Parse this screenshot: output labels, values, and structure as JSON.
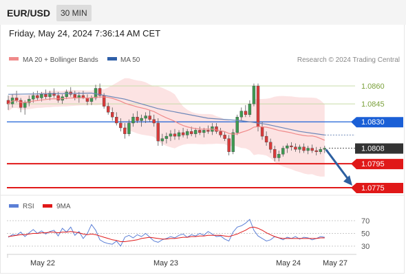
{
  "header": {
    "pair": "EUR/USD",
    "timeframe": "30 MIN",
    "timestamp": "Friday, May 24, 2024 7:36:14 AM CET"
  },
  "chart_data": [
    {
      "type": "candlestick",
      "legend": [
        {
          "name": "MA 20 + Bollinger Bands",
          "color": "#f08a8a"
        },
        {
          "name": "MA 50",
          "color": "#2f5fa8"
        }
      ],
      "credit": "Research © 2024 Trading Central",
      "x_labels": [
        "May 22",
        "May 23",
        "May 24",
        "May 27"
      ],
      "levels": [
        {
          "label": "1.0860",
          "value": 1.086,
          "kind": "resistance",
          "color": "#7aa03a"
        },
        {
          "label": "1.0845",
          "value": 1.0845,
          "kind": "resistance",
          "color": "#7aa03a"
        },
        {
          "label": "1.0830",
          "value": 1.083,
          "kind": "pivot",
          "color": "#1a5fd6"
        },
        {
          "label": "1.0808",
          "value": 1.0808,
          "kind": "last-price",
          "color": "#333333"
        },
        {
          "label": "1.0795",
          "value": 1.0795,
          "kind": "target",
          "color": "#e01818"
        },
        {
          "label": "1.0775",
          "value": 1.0775,
          "kind": "target",
          "color": "#e01818"
        }
      ],
      "ohlc": [
        [
          1.0848,
          1.0852,
          1.084,
          1.0845
        ],
        [
          1.0845,
          1.0853,
          1.0842,
          1.085
        ],
        [
          1.085,
          1.0856,
          1.0846,
          1.0848
        ],
        [
          1.0848,
          1.085,
          1.0838,
          1.0842
        ],
        [
          1.0842,
          1.0848,
          1.0836,
          1.0846
        ],
        [
          1.0846,
          1.0852,
          1.0843,
          1.0849
        ],
        [
          1.0849,
          1.0855,
          1.0846,
          1.0852
        ],
        [
          1.0852,
          1.0856,
          1.0848,
          1.085
        ],
        [
          1.085,
          1.0855,
          1.0847,
          1.0853
        ],
        [
          1.0853,
          1.0857,
          1.0849,
          1.0851
        ],
        [
          1.0851,
          1.0856,
          1.0848,
          1.0854
        ],
        [
          1.0854,
          1.0858,
          1.085,
          1.0852
        ],
        [
          1.0852,
          1.0855,
          1.0846,
          1.0848
        ],
        [
          1.0848,
          1.0853,
          1.0845,
          1.0851
        ],
        [
          1.0851,
          1.0857,
          1.0849,
          1.0855
        ],
        [
          1.0855,
          1.0859,
          1.0851,
          1.0853
        ],
        [
          1.0853,
          1.0856,
          1.0848,
          1.085
        ],
        [
          1.085,
          1.0855,
          1.0846,
          1.0852
        ],
        [
          1.0852,
          1.0856,
          1.0849,
          1.085
        ],
        [
          1.085,
          1.0853,
          1.0844,
          1.0847
        ],
        [
          1.0847,
          1.0852,
          1.0844,
          1.085
        ],
        [
          1.085,
          1.0861,
          1.0848,
          1.0858
        ],
        [
          1.0858,
          1.0862,
          1.085,
          1.0852
        ],
        [
          1.0852,
          1.0854,
          1.0841,
          1.0843
        ],
        [
          1.0843,
          1.0846,
          1.0836,
          1.0838
        ],
        [
          1.0838,
          1.0842,
          1.0831,
          1.0834
        ],
        [
          1.0834,
          1.0838,
          1.0827,
          1.0829
        ],
        [
          1.0829,
          1.0833,
          1.0822,
          1.0825
        ],
        [
          1.0825,
          1.0829,
          1.0816,
          1.082
        ],
        [
          1.082,
          1.0832,
          1.0818,
          1.0829
        ],
        [
          1.0829,
          1.0837,
          1.0826,
          1.0834
        ],
        [
          1.0834,
          1.0839,
          1.0829,
          1.0831
        ],
        [
          1.0831,
          1.0836,
          1.0826,
          1.0833
        ],
        [
          1.0833,
          1.0838,
          1.0829,
          1.0835
        ],
        [
          1.0835,
          1.084,
          1.083,
          1.0832
        ],
        [
          1.0832,
          1.0836,
          1.0826,
          1.0829
        ],
        [
          1.0829,
          1.0833,
          1.081,
          1.0814
        ],
        [
          1.0814,
          1.082,
          1.081,
          1.0816
        ],
        [
          1.0816,
          1.0821,
          1.0812,
          1.0818
        ],
        [
          1.0818,
          1.0823,
          1.0814,
          1.082
        ],
        [
          1.082,
          1.0824,
          1.0815,
          1.0818
        ],
        [
          1.0818,
          1.0823,
          1.0815,
          1.0821
        ],
        [
          1.0821,
          1.0825,
          1.0817,
          1.0819
        ],
        [
          1.0819,
          1.0824,
          1.0816,
          1.0822
        ],
        [
          1.0822,
          1.0826,
          1.0818,
          1.082
        ],
        [
          1.082,
          1.0825,
          1.0817,
          1.0823
        ],
        [
          1.0823,
          1.0826,
          1.0819,
          1.0821
        ],
        [
          1.0821,
          1.0825,
          1.0817,
          1.0823
        ],
        [
          1.0823,
          1.0827,
          1.082,
          1.0822
        ],
        [
          1.0822,
          1.0829,
          1.0819,
          1.0826
        ],
        [
          1.0826,
          1.0829,
          1.082,
          1.0822
        ],
        [
          1.0822,
          1.0825,
          1.0817,
          1.0819
        ],
        [
          1.0819,
          1.0822,
          1.0814,
          1.0816
        ],
        [
          1.0816,
          1.0819,
          1.0802,
          1.0805
        ],
        [
          1.0805,
          1.0824,
          1.0803,
          1.0821
        ],
        [
          1.0821,
          1.0836,
          1.0819,
          1.0834
        ],
        [
          1.0834,
          1.0842,
          1.0831,
          1.0839
        ],
        [
          1.0839,
          1.0844,
          1.0834,
          1.0836
        ],
        [
          1.0836,
          1.0848,
          1.0834,
          1.0845
        ],
        [
          1.0845,
          1.0862,
          1.0843,
          1.086
        ],
        [
          1.086,
          1.0862,
          1.0822,
          1.0826
        ],
        [
          1.0826,
          1.083,
          1.0815,
          1.0818
        ],
        [
          1.0818,
          1.0822,
          1.081,
          1.0813
        ],
        [
          1.0813,
          1.0816,
          1.0804,
          1.0807
        ],
        [
          1.0807,
          1.081,
          1.0797,
          1.08
        ],
        [
          1.08,
          1.0806,
          1.0797,
          1.0803
        ],
        [
          1.0803,
          1.081,
          1.0801,
          1.0808
        ],
        [
          1.0808,
          1.0812,
          1.0804,
          1.081
        ],
        [
          1.081,
          1.0813,
          1.0806,
          1.0809
        ],
        [
          1.0809,
          1.0812,
          1.0805,
          1.0807
        ],
        [
          1.0807,
          1.0811,
          1.0804,
          1.0809
        ],
        [
          1.0809,
          1.0812,
          1.0804,
          1.0806
        ],
        [
          1.0806,
          1.081,
          1.0803,
          1.0808
        ],
        [
          1.0808,
          1.0811,
          1.0804,
          1.0806
        ],
        [
          1.0806,
          1.0809,
          1.0802,
          1.0805
        ],
        [
          1.0805,
          1.0809,
          1.0803,
          1.0807
        ],
        [
          1.0807,
          1.081,
          1.0804,
          1.0808
        ]
      ],
      "ma50": [
        [
          0,
          1.0853
        ],
        [
          20,
          1.0854
        ],
        [
          28,
          1.0849
        ],
        [
          36,
          1.0841
        ],
        [
          48,
          1.0833
        ],
        [
          56,
          1.0831
        ],
        [
          62,
          1.0828
        ],
        [
          70,
          1.0822
        ],
        [
          76,
          1.0819
        ]
      ]
    },
    {
      "type": "line",
      "legend": [
        {
          "name": "RSI",
          "color": "#5b7fd6"
        },
        {
          "name": "9MA",
          "color": "#e01818"
        }
      ],
      "y_ticks": [
        "70",
        "50",
        "30"
      ],
      "ylim": [
        20,
        80
      ],
      "series": [
        {
          "name": "RSI",
          "values": [
            44,
            48,
            47,
            52,
            45,
            51,
            56,
            50,
            54,
            49,
            53,
            55,
            46,
            58,
            52,
            60,
            47,
            53,
            42,
            50,
            64,
            55,
            40,
            36,
            34,
            33,
            38,
            30,
            44,
            47,
            43,
            48,
            45,
            50,
            44,
            38,
            36,
            40,
            42,
            45,
            43,
            47,
            49,
            44,
            48,
            46,
            50,
            47,
            53,
            49,
            45,
            46,
            41,
            38,
            52,
            60,
            62,
            66,
            72,
            55,
            46,
            42,
            38,
            40,
            45,
            43,
            40,
            44,
            42,
            45,
            41,
            44,
            43,
            40,
            42,
            45,
            44
          ]
        },
        {
          "name": "9MA",
          "values": [
            45,
            46,
            47,
            48,
            48,
            49,
            50,
            50,
            51,
            51,
            52,
            52,
            51,
            52,
            52,
            53,
            52,
            51,
            49,
            48,
            49,
            48,
            46,
            44,
            42,
            40,
            39,
            37,
            37,
            38,
            39,
            40,
            42,
            43,
            44,
            43,
            42,
            41,
            41,
            42,
            42,
            43,
            44,
            44,
            45,
            45,
            46,
            46,
            47,
            47,
            47,
            47,
            46,
            45,
            47,
            49,
            52,
            55,
            59,
            60,
            58,
            55,
            51,
            48,
            45,
            43,
            42,
            42,
            42,
            42,
            42,
            42,
            42,
            42,
            42,
            43,
            43
          ]
        }
      ]
    }
  ]
}
